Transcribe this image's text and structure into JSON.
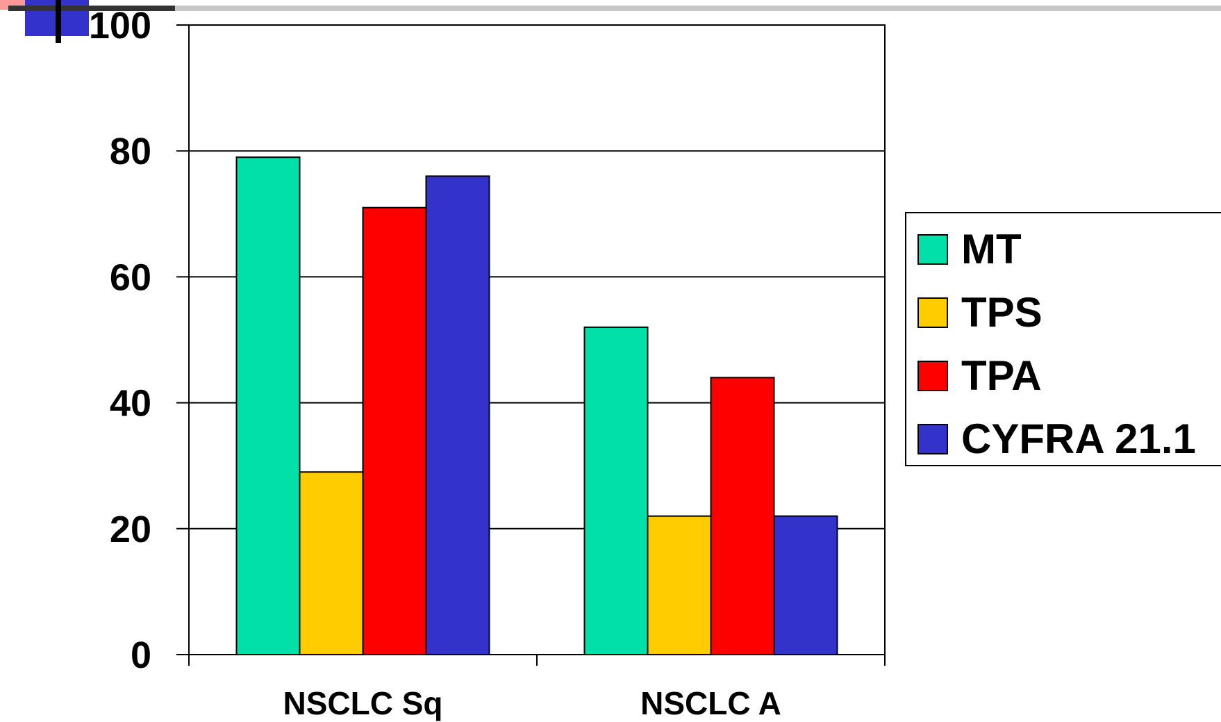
{
  "colors": {
    "decor_blue": "#3333cc",
    "decor_light": "#ff9999",
    "gridline": "#000000",
    "background": "#ffffff"
  },
  "chart_data": {
    "type": "bar",
    "categories": [
      "NSCLC Sq",
      "NSCLC A"
    ],
    "series": [
      {
        "name": "MT",
        "color": "#00e0a8",
        "values": [
          79,
          52
        ]
      },
      {
        "name": "TPS",
        "color": "#ffcc00",
        "values": [
          29,
          22
        ]
      },
      {
        "name": "TPA",
        "color": "#ff0000",
        "values": [
          71,
          44
        ]
      },
      {
        "name": "CYFRA 21.1",
        "color": "#3333cc",
        "values": [
          76,
          22
        ]
      }
    ],
    "yticks": [
      "0",
      "20",
      "40",
      "60",
      "80",
      "100"
    ],
    "ylim": [
      0,
      100
    ],
    "title": "",
    "xlabel": "",
    "ylabel": "",
    "grid": true,
    "legend_position": "right"
  }
}
